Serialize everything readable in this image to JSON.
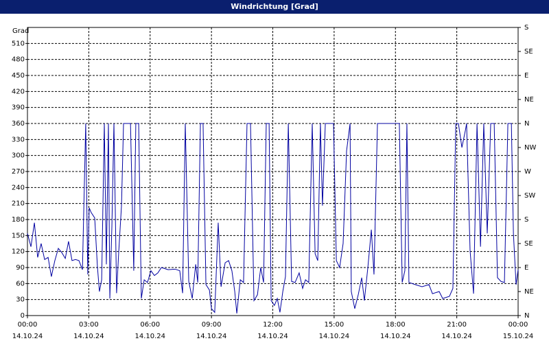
{
  "chart_data": {
    "type": "line",
    "title": "Windrichtung [Grad]",
    "y_label": "Grad",
    "x": [
      0,
      0.17,
      0.34,
      0.5,
      0.67,
      0.84,
      1.01,
      1.17,
      1.34,
      1.51,
      1.68,
      1.85,
      2.01,
      2.18,
      2.35,
      2.52,
      2.69,
      2.85,
      2.95,
      3.02,
      3.12,
      3.29,
      3.42,
      3.52,
      3.63,
      3.76,
      3.86,
      3.96,
      4.03,
      4.13,
      4.23,
      4.36,
      4.46,
      4.6,
      4.7,
      5.04,
      5.2,
      5.3,
      5.44,
      5.57,
      5.71,
      5.87,
      6.04,
      6.21,
      6.38,
      6.55,
      6.88,
      7.22,
      7.45,
      7.59,
      7.72,
      7.89,
      8.06,
      8.23,
      8.33,
      8.46,
      8.59,
      8.73,
      8.9,
      9,
      9.16,
      9.33,
      9.47,
      9.67,
      9.84,
      10,
      10.14,
      10.24,
      10.41,
      10.57,
      10.74,
      10.91,
      11.08,
      11.25,
      11.41,
      11.55,
      11.68,
      11.82,
      11.92,
      12.08,
      12.22,
      12.35,
      12.49,
      12.62,
      12.76,
      12.92,
      13.09,
      13.29,
      13.46,
      13.6,
      13.76,
      13.93,
      14.07,
      14.2,
      14.33,
      14.43,
      14.57,
      14.7,
      14.84,
      14.97,
      15.11,
      15.27,
      15.44,
      15.61,
      15.78,
      15.84,
      16.01,
      16.18,
      16.35,
      16.48,
      16.65,
      16.82,
      16.95,
      17.12,
      17.29,
      17.62,
      17.96,
      18.19,
      18.33,
      18.46,
      18.56,
      18.66,
      18.97,
      19.3,
      19.64,
      19.81,
      20.14,
      20.31,
      20.64,
      20.81,
      20.95,
      21.08,
      21.25,
      21.42,
      21.48,
      21.65,
      21.82,
      21.99,
      22.16,
      22.32,
      22.49,
      22.66,
      22.83,
      22.99,
      23.16,
      23.33,
      23.5,
      23.67,
      23.77,
      23.9,
      24
    ],
    "series": [
      {
        "color": "#0000a0",
        "values": [
          154,
          129,
          174,
          109,
          135,
          105,
          109,
          73,
          103,
          126,
          118,
          107,
          139,
          103,
          105,
          103,
          86,
          360,
          77,
          202,
          193,
          183,
          93,
          45,
          67,
          360,
          96,
          360,
          32,
          167,
          360,
          42,
          116,
          206,
          360,
          360,
          84,
          360,
          360,
          32,
          67,
          62,
          84,
          75,
          80,
          90,
          86,
          87,
          84,
          42,
          360,
          64,
          32,
          96,
          62,
          360,
          360,
          58,
          48,
          13,
          6,
          174,
          54,
          99,
          103,
          84,
          45,
          4,
          67,
          62,
          360,
          360,
          28,
          39,
          90,
          62,
          360,
          360,
          28,
          19,
          32,
          6,
          45,
          73,
          360,
          64,
          62,
          80,
          51,
          67,
          62,
          360,
          116,
          103,
          360,
          206,
          360,
          360,
          360,
          360,
          103,
          90,
          135,
          309,
          360,
          45,
          13,
          39,
          71,
          28,
          90,
          161,
          77,
          360,
          360,
          360,
          360,
          360,
          62,
          84,
          360,
          62,
          58,
          54,
          58,
          41,
          45,
          32,
          36,
          51,
          360,
          360,
          315,
          347,
          360,
          122,
          41,
          360,
          129,
          360,
          154,
          360,
          360,
          71,
          64,
          62,
          360,
          360,
          154,
          58,
          86
        ]
      }
    ],
    "xlim": [
      0,
      24
    ],
    "xticks": [
      {
        "value": 0,
        "label": "00:00"
      },
      {
        "value": 3,
        "label": "03:00"
      },
      {
        "value": 6,
        "label": "06:00"
      },
      {
        "value": 9,
        "label": "09:00"
      },
      {
        "value": 12,
        "label": "12:00"
      },
      {
        "value": 15,
        "label": "15:00"
      },
      {
        "value": 18,
        "label": "18:00"
      },
      {
        "value": 21,
        "label": "21:00"
      },
      {
        "value": 24,
        "label": "00:00"
      }
    ],
    "xtick_dates": [
      "14.10.24",
      "14.10.24",
      "14.10.24",
      "14.10.24",
      "14.10.24",
      "14.10.24",
      "14.10.24",
      "14.10.24",
      "15.10.24"
    ],
    "ylim": [
      0,
      540
    ],
    "yticks": [
      0,
      30,
      60,
      90,
      120,
      150,
      180,
      210,
      240,
      270,
      300,
      330,
      360,
      390,
      420,
      450,
      480,
      510
    ],
    "y2lim": [
      0,
      540
    ],
    "y2ticks": [
      {
        "value": 0,
        "label": "N"
      },
      {
        "value": 45,
        "label": "NE"
      },
      {
        "value": 90,
        "label": "E"
      },
      {
        "value": 135,
        "label": "SE"
      },
      {
        "value": 180,
        "label": "S"
      },
      {
        "value": 225,
        "label": "SW"
      },
      {
        "value": 270,
        "label": "W"
      },
      {
        "value": 315,
        "label": "NW"
      },
      {
        "value": 360,
        "label": "N"
      },
      {
        "value": 405,
        "label": "NE"
      },
      {
        "value": 450,
        "label": "E"
      },
      {
        "value": 495,
        "label": "SE"
      },
      {
        "value": 540,
        "label": "S"
      }
    ],
    "grid": true
  }
}
